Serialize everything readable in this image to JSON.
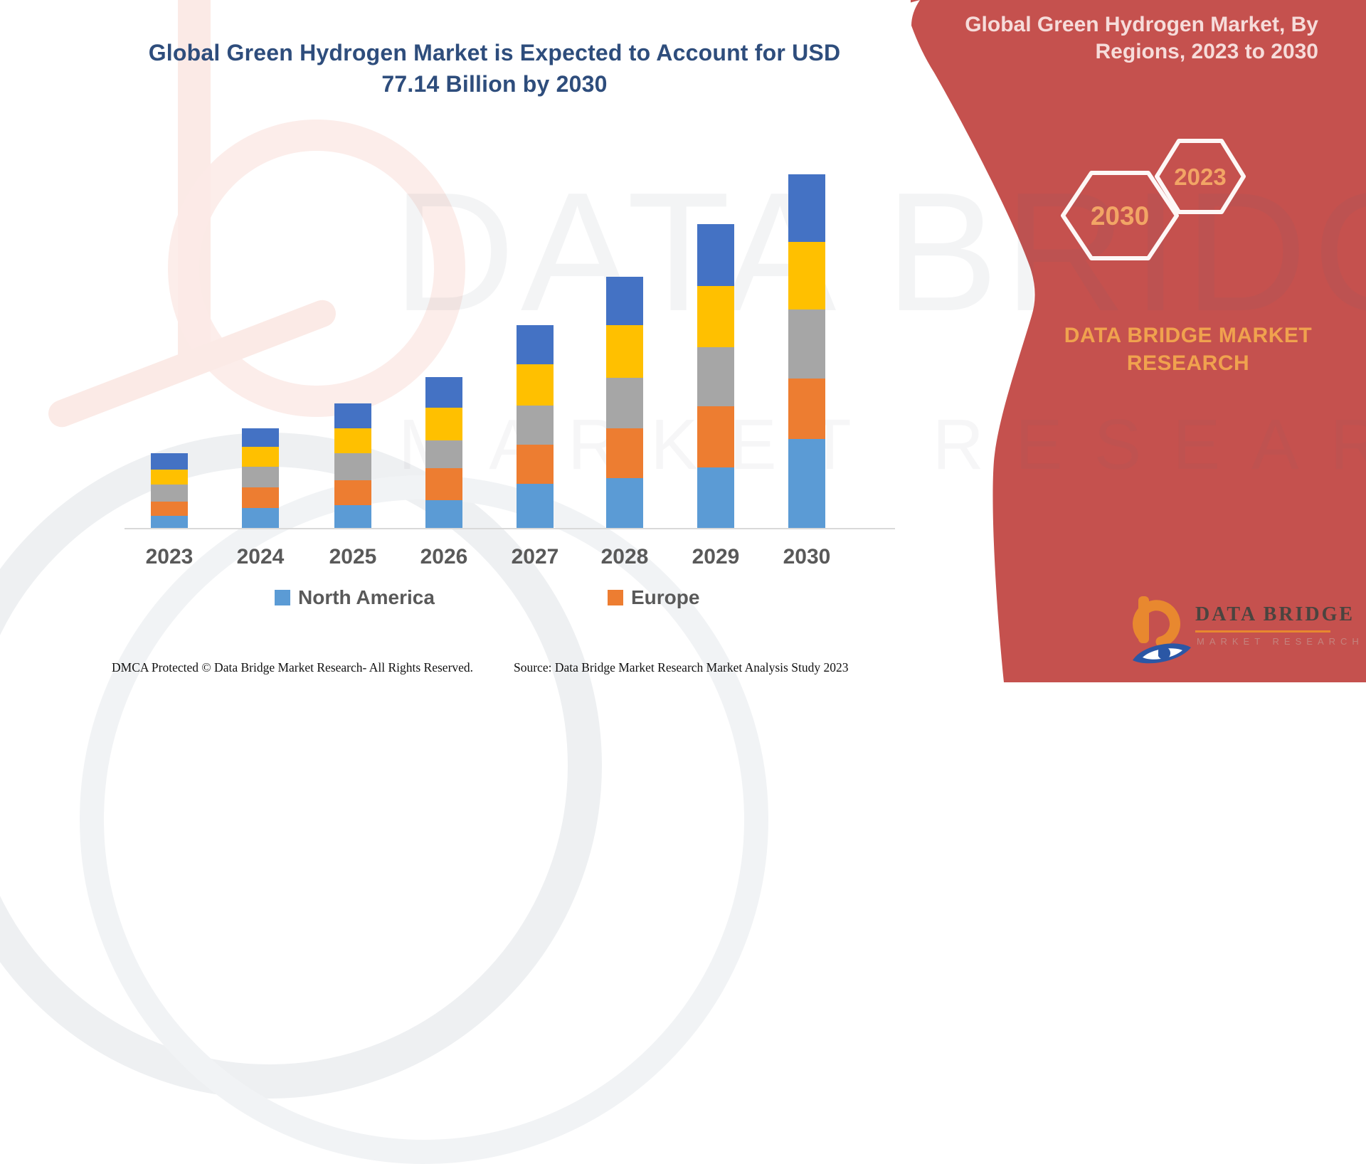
{
  "title": {
    "line1": "Global Green Hydrogen Market is Expected to Account for USD",
    "line2": "77.14 Billion by 2030"
  },
  "panel": {
    "header_line1": "Global Green Hydrogen Market, By",
    "header_line2": "Regions, 2023 to 2030",
    "hexagons": [
      {
        "year": "2030"
      },
      {
        "year": "2023"
      }
    ],
    "brand_line1": "DATA BRIDGE MARKET",
    "brand_line2": "RESEARCH",
    "background_color": "#c5514e",
    "header_text_color": "#f6dcda",
    "accent_text_color": "#f0a24e"
  },
  "watermark": {
    "line1": "DATA BRIDGE",
    "line2": "MARKET RESEARCH"
  },
  "legend": {
    "items": [
      {
        "label": "North America",
        "color": "#5b9bd5"
      },
      {
        "label": "Europe",
        "color": "#ed7d31"
      }
    ]
  },
  "footer": {
    "left": "DMCA Protected © Data Bridge Market Research-  All Rights Reserved.",
    "right": "Source: Data Bridge Market Research  Market Analysis Study 2023"
  },
  "logo": {
    "name": "DATA BRIDGE",
    "subtitle": "MARKET RESEARCH"
  },
  "chart_data": {
    "type": "bar",
    "stacked": true,
    "title": "Global Green Hydrogen Market is Expected to Account for USD 77.14 Billion by 2030",
    "units": "USD Billion (estimated from bar heights; 2030 total = 77.14)",
    "categories": [
      "2023",
      "2024",
      "2025",
      "2026",
      "2027",
      "2028",
      "2029",
      "2030"
    ],
    "series": [
      {
        "name": "North America",
        "color": "#5b9bd5",
        "in_legend": true,
        "values": [
          2.6,
          4.3,
          5.0,
          6.1,
          9.6,
          10.9,
          13.2,
          19.4
        ]
      },
      {
        "name": "Europe",
        "color": "#ed7d31",
        "in_legend": true,
        "values": [
          3.1,
          4.5,
          5.5,
          7.0,
          8.5,
          10.9,
          13.4,
          13.2
        ]
      },
      {
        "name": "Unlabeled region (gray)",
        "color": "#a6a6a6",
        "in_legend": false,
        "values": [
          3.7,
          4.5,
          5.9,
          6.1,
          8.5,
          11.1,
          12.9,
          15.1
        ]
      },
      {
        "name": "Unlabeled region (yellow)",
        "color": "#ffc000",
        "in_legend": false,
        "values": [
          3.2,
          4.3,
          5.5,
          7.2,
          9.0,
          11.5,
          13.3,
          14.7
        ]
      },
      {
        "name": "Unlabeled region (dark blue)",
        "color": "#4472c4",
        "in_legend": false,
        "values": [
          3.5,
          4.1,
          5.5,
          6.6,
          8.6,
          10.6,
          13.5,
          14.7
        ]
      }
    ],
    "totals": [
      16.1,
      21.7,
      27.4,
      33.0,
      44.2,
      55.0,
      66.3,
      77.14
    ],
    "xlabel": "",
    "ylabel": "",
    "ylim": [
      0,
      80
    ],
    "grid": false,
    "legend_position": "bottom",
    "stack_order": "bottom-to-top as listed"
  }
}
